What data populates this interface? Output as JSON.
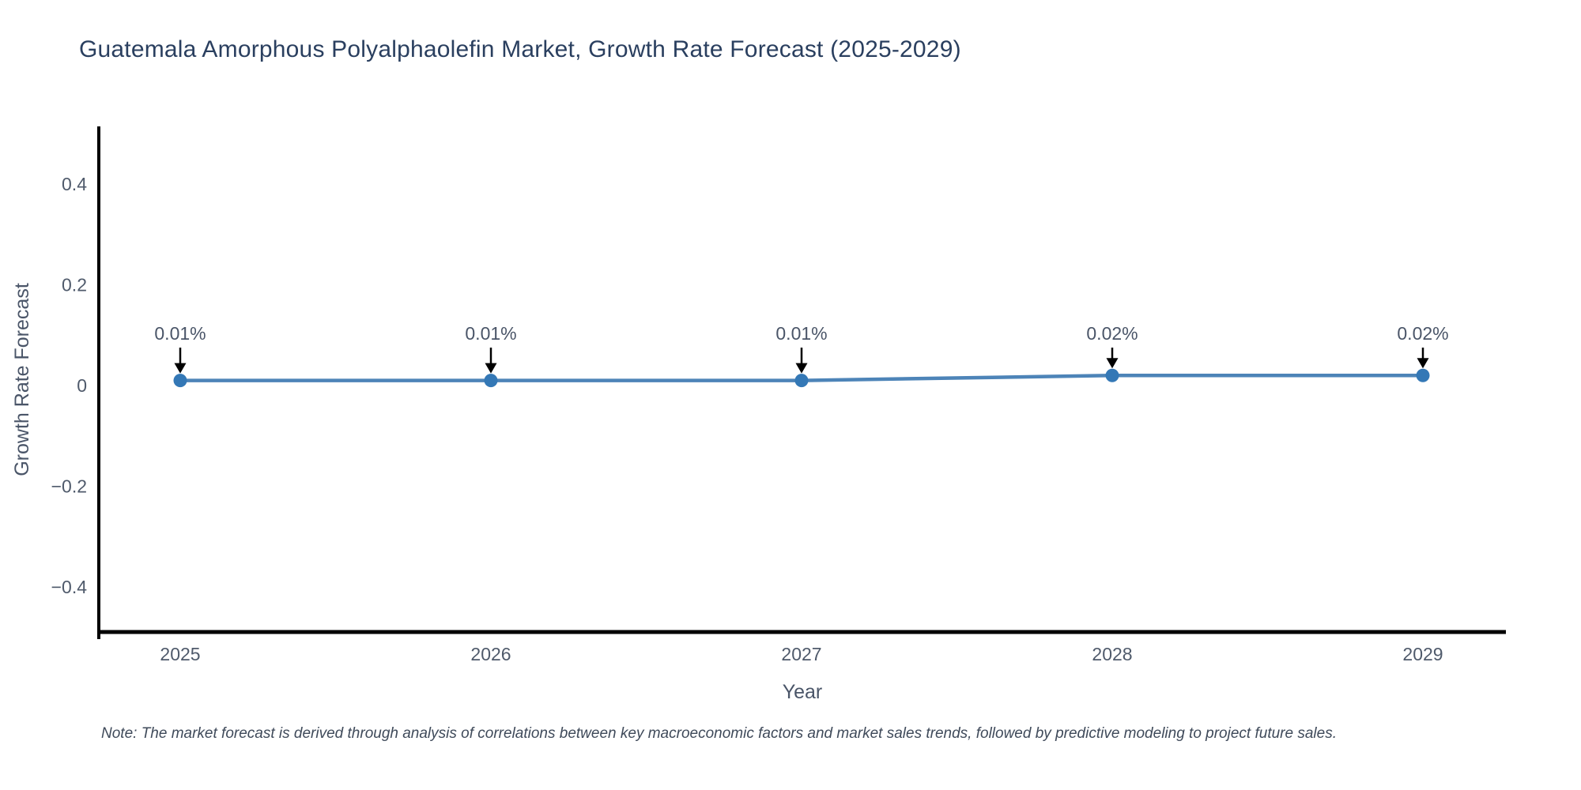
{
  "title": "Guatemala Amorphous Polyalphaolefin Market, Growth Rate Forecast (2025-2029)",
  "note": "Note: The market forecast is derived through analysis of correlations between key macroeconomic factors and market sales trends, followed by predictive modeling to project future sales.",
  "chart_data": {
    "type": "line",
    "title": "Guatemala Amorphous Polyalphaolefin Market, Growth Rate Forecast (2025-2029)",
    "xlabel": "Year",
    "ylabel": "Growth Rate Forecast",
    "x": [
      2025,
      2026,
      2027,
      2028,
      2029
    ],
    "series": [
      {
        "name": "Growth Rate Forecast",
        "values": [
          0.01,
          0.01,
          0.01,
          0.02,
          0.02
        ]
      }
    ],
    "point_labels": [
      "0.01%",
      "0.01%",
      "0.01%",
      "0.02%",
      "0.02%"
    ],
    "xticks": [
      "2025",
      "2026",
      "2027",
      "2028",
      "2029"
    ],
    "yticks": [
      {
        "value": 0.4,
        "label": "0.4"
      },
      {
        "value": 0.2,
        "label": "0.2"
      },
      {
        "value": 0,
        "label": "0"
      },
      {
        "value": -0.2,
        "label": "−0.2"
      },
      {
        "value": -0.4,
        "label": "−0.4"
      }
    ],
    "ylim": [
      -0.49,
      0.52
    ],
    "grid": false,
    "legend_position": "none",
    "background": "#ffffff",
    "colors": {
      "line": "#4d84b8",
      "marker": "#3478b6",
      "arrow": "#000000",
      "axis": "#000000",
      "tick_text": "#4f5a6b",
      "title_text": "#2a3f5f",
      "annotation_text": "#4a5568"
    }
  }
}
